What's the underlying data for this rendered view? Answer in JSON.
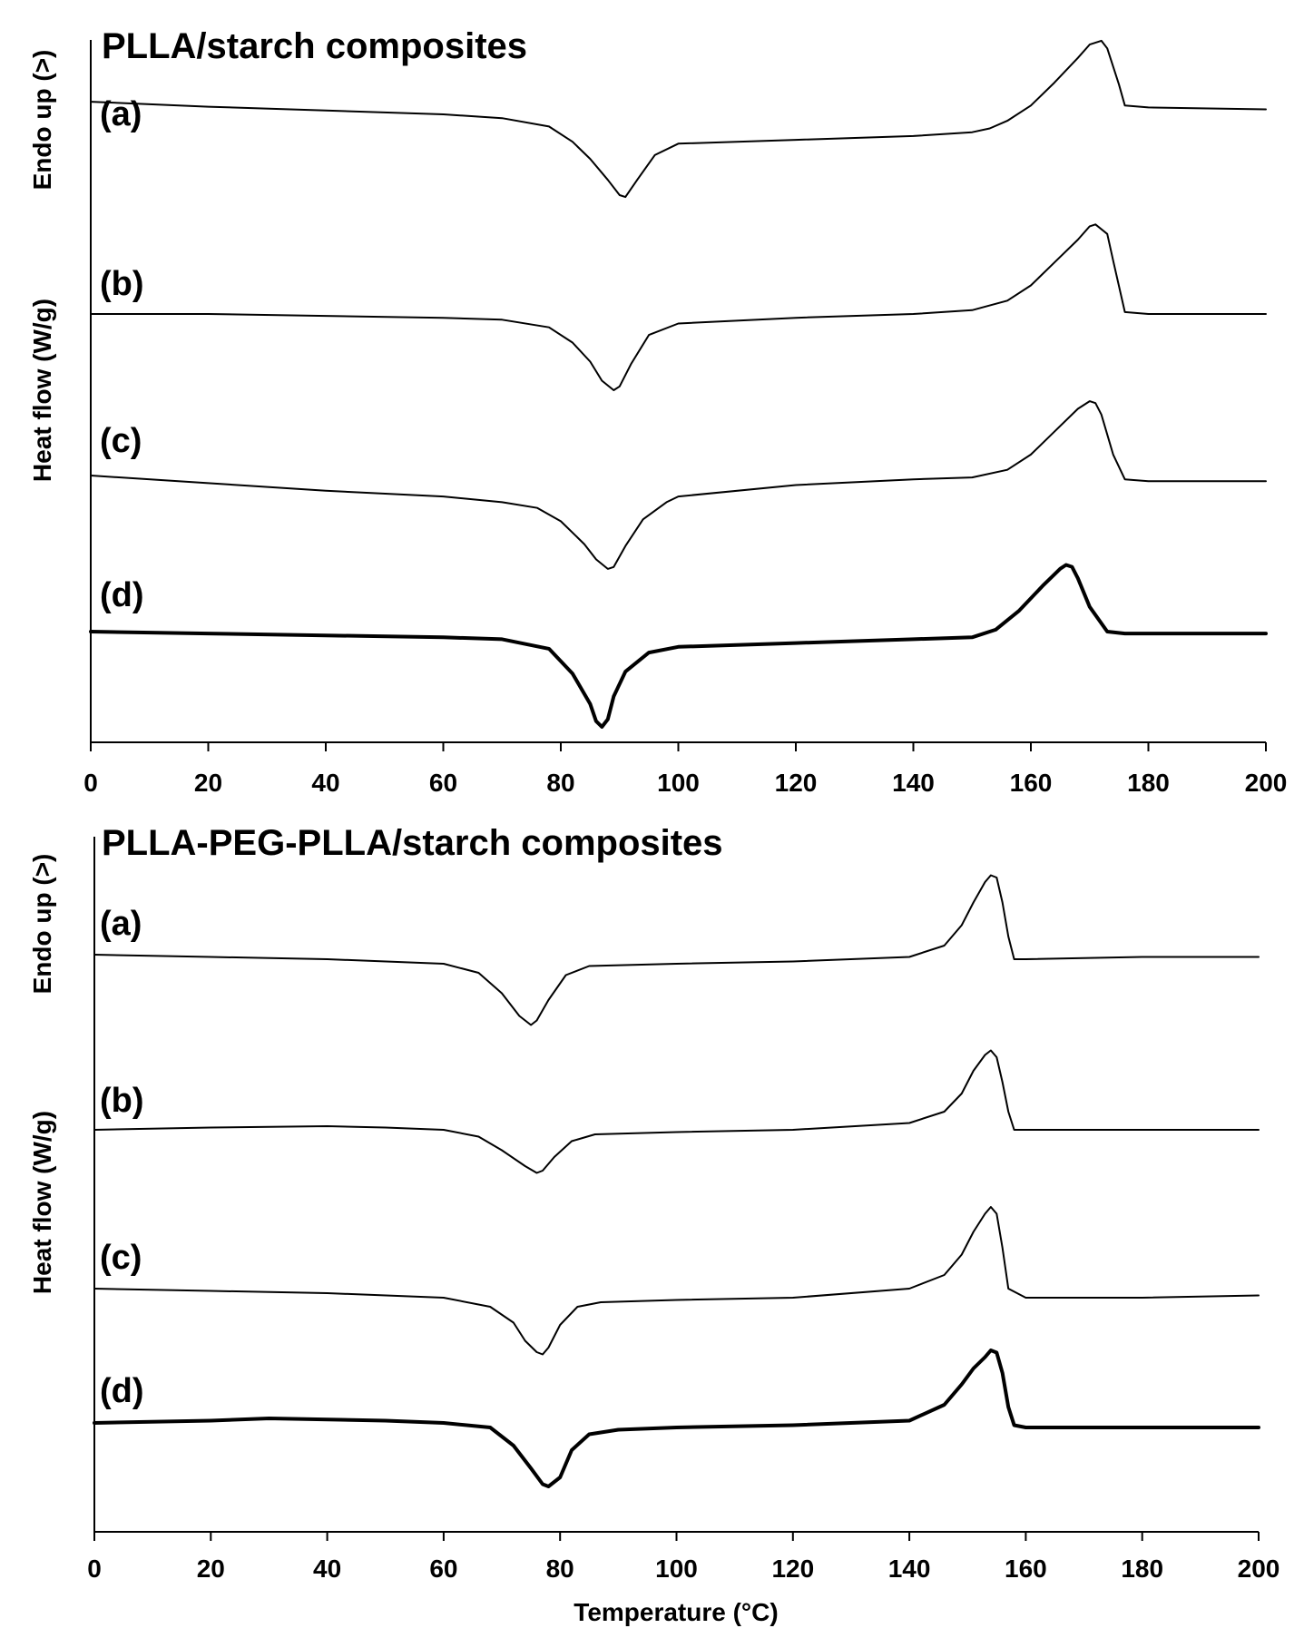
{
  "chart_data": [
    {
      "type": "line",
      "title": "PLLA/starch composites",
      "ylabel": "Heat flow (W/g)",
      "ylabel_note": "Endo up (>)",
      "xlabel": "",
      "xlim": [
        0,
        200
      ],
      "xticks": [
        "0",
        "20",
        "40",
        "60",
        "80",
        "100",
        "120",
        "140",
        "160",
        "180",
        "200"
      ],
      "grid": false,
      "series": [
        {
          "name": "(a)",
          "x": [
            0,
            20,
            40,
            60,
            70,
            78,
            82,
            85,
            88,
            90,
            91,
            93,
            96,
            100,
            120,
            140,
            150,
            153,
            156,
            160,
            164,
            168,
            170,
            172,
            173,
            175,
            176,
            180,
            200
          ],
          "y": [
            0.95,
            0.82,
            0.72,
            0.62,
            0.52,
            0.3,
            -0.1,
            -0.55,
            -1.1,
            -1.5,
            -1.55,
            -1.1,
            -0.45,
            -0.15,
            -0.05,
            0.05,
            0.15,
            0.25,
            0.45,
            0.85,
            1.45,
            2.1,
            2.45,
            2.55,
            2.35,
            1.4,
            0.85,
            0.8,
            0.75
          ]
        },
        {
          "name": "(b)",
          "x": [
            0,
            20,
            40,
            60,
            70,
            78,
            82,
            85,
            87,
            89,
            90,
            92,
            95,
            100,
            120,
            140,
            150,
            156,
            160,
            164,
            168,
            170,
            171,
            173,
            174,
            176,
            180,
            200
          ],
          "y": [
            0.0,
            0.0,
            -0.05,
            -0.1,
            -0.15,
            -0.35,
            -0.75,
            -1.25,
            -1.75,
            -2.0,
            -1.9,
            -1.3,
            -0.55,
            -0.25,
            -0.1,
            0.0,
            0.1,
            0.35,
            0.75,
            1.35,
            1.95,
            2.3,
            2.35,
            2.1,
            1.4,
            0.05,
            0.0,
            0.0
          ]
        },
        {
          "name": "(c)",
          "x": [
            0,
            20,
            40,
            60,
            70,
            76,
            80,
            84,
            86,
            88,
            89,
            91,
            94,
            98,
            100,
            120,
            140,
            150,
            156,
            160,
            164,
            168,
            170,
            171,
            172,
            174,
            176,
            180,
            200
          ],
          "y": [
            0.0,
            -0.2,
            -0.4,
            -0.55,
            -0.7,
            -0.85,
            -1.2,
            -1.8,
            -2.2,
            -2.45,
            -2.4,
            -1.85,
            -1.15,
            -0.7,
            -0.55,
            -0.25,
            -0.1,
            -0.05,
            0.15,
            0.55,
            1.15,
            1.75,
            1.95,
            1.9,
            1.6,
            0.55,
            -0.1,
            -0.15,
            -0.15
          ]
        },
        {
          "name": "(d)",
          "x": [
            0,
            20,
            40,
            60,
            70,
            78,
            82,
            85,
            86,
            87,
            88,
            89,
            91,
            95,
            100,
            120,
            140,
            150,
            154,
            158,
            162,
            165,
            166,
            167,
            168,
            170,
            173,
            176,
            180,
            200
          ],
          "y": [
            0.0,
            -0.05,
            -0.1,
            -0.15,
            -0.2,
            -0.45,
            -1.1,
            -1.9,
            -2.35,
            -2.5,
            -2.3,
            -1.7,
            -1.05,
            -0.55,
            -0.4,
            -0.3,
            -0.2,
            -0.15,
            0.05,
            0.55,
            1.2,
            1.65,
            1.75,
            1.7,
            1.4,
            0.65,
            0.0,
            -0.05,
            -0.05,
            -0.05
          ]
        }
      ]
    },
    {
      "type": "line",
      "title": "PLLA-PEG-PLLA/starch composites",
      "ylabel": "Heat flow (W/g)",
      "ylabel_note": "Endo up (>)",
      "xlabel": "Temperature (°C)",
      "xlim": [
        0,
        200
      ],
      "xticks": [
        "0",
        "20",
        "40",
        "60",
        "80",
        "100",
        "120",
        "140",
        "160",
        "180",
        "200"
      ],
      "grid": false,
      "series": [
        {
          "name": "(a)",
          "x": [
            0,
            20,
            40,
            60,
            66,
            70,
            73,
            75,
            76,
            78,
            81,
            85,
            100,
            120,
            140,
            146,
            149,
            151,
            153,
            154,
            155,
            156,
            157,
            158,
            160,
            180,
            200
          ],
          "y": [
            0.0,
            -0.05,
            -0.1,
            -0.2,
            -0.4,
            -0.85,
            -1.35,
            -1.55,
            -1.45,
            -1.0,
            -0.45,
            -0.25,
            -0.2,
            -0.15,
            -0.05,
            0.2,
            0.65,
            1.15,
            1.6,
            1.75,
            1.7,
            1.15,
            0.4,
            -0.1,
            -0.1,
            -0.05,
            -0.05
          ]
        },
        {
          "name": "(b)",
          "x": [
            0,
            20,
            40,
            50,
            60,
            66,
            70,
            74,
            76,
            77,
            79,
            82,
            86,
            100,
            120,
            140,
            146,
            149,
            151,
            153,
            154,
            155,
            156,
            157,
            158,
            160,
            180,
            200
          ],
          "y": [
            0.0,
            0.05,
            0.08,
            0.05,
            0.0,
            -0.15,
            -0.45,
            -0.8,
            -0.95,
            -0.9,
            -0.6,
            -0.25,
            -0.1,
            -0.05,
            0.0,
            0.15,
            0.4,
            0.8,
            1.3,
            1.65,
            1.75,
            1.6,
            1.05,
            0.4,
            0.0,
            0.0,
            0.0,
            0.0
          ]
        },
        {
          "name": "(c)",
          "x": [
            0,
            20,
            40,
            60,
            68,
            72,
            74,
            76,
            77,
            78,
            80,
            83,
            87,
            100,
            120,
            140,
            146,
            149,
            151,
            153,
            154,
            155,
            156,
            157,
            160,
            180,
            200
          ],
          "y": [
            0.0,
            -0.05,
            -0.1,
            -0.2,
            -0.4,
            -0.75,
            -1.15,
            -1.4,
            -1.45,
            -1.3,
            -0.8,
            -0.4,
            -0.3,
            -0.25,
            -0.2,
            0.0,
            0.3,
            0.75,
            1.25,
            1.65,
            1.8,
            1.65,
            0.9,
            0.0,
            -0.2,
            -0.2,
            -0.15
          ]
        },
        {
          "name": "(d)",
          "x": [
            0,
            20,
            30,
            50,
            60,
            68,
            72,
            75,
            77,
            78,
            80,
            82,
            85,
            90,
            100,
            120,
            140,
            146,
            149,
            151,
            153,
            154,
            155,
            156,
            157,
            158,
            160,
            180,
            200
          ],
          "y": [
            0.0,
            0.05,
            0.1,
            0.05,
            0.0,
            -0.1,
            -0.5,
            -1.0,
            -1.35,
            -1.4,
            -1.2,
            -0.6,
            -0.25,
            -0.15,
            -0.1,
            -0.05,
            0.05,
            0.4,
            0.85,
            1.2,
            1.45,
            1.6,
            1.55,
            1.1,
            0.35,
            -0.05,
            -0.1,
            -0.1,
            -0.1
          ]
        }
      ]
    }
  ]
}
